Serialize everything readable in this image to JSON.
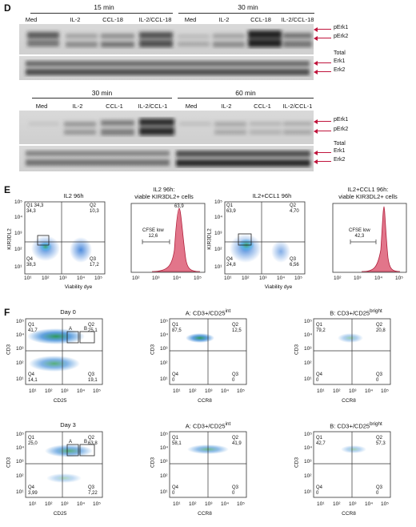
{
  "panel_d": {
    "letter": "D",
    "blot1": {
      "time_headers": [
        "15 min",
        "30 min"
      ],
      "lanes": [
        "Med",
        "IL-2",
        "CCL-18",
        "IL-2/CCL-18",
        "Med",
        "IL-2",
        "CCL-18",
        "IL-2/CCL-18"
      ],
      "labels": [
        "pErk1",
        "pErk2",
        "Total",
        "Erk1",
        "Erk2"
      ]
    },
    "blot2": {
      "time_headers": [
        "30 min",
        "60 min"
      ],
      "lanes": [
        "Med",
        "IL-2",
        "CCL-1",
        "IL-2/CCL-1",
        "Med",
        "IL-2",
        "CCL-1",
        "IL-2/CCL-1"
      ],
      "labels": [
        "pErk1",
        "pErk2",
        "Total",
        "Erk1",
        "Erk2"
      ]
    }
  },
  "panel_e": {
    "letter": "E",
    "plots": [
      {
        "title": "IL2 96h",
        "ylabel": "KIR3DL2",
        "xlabel": "Viability dye",
        "q1": "Q1 34,3",
        "q1v": "34,3",
        "q2": "Q2",
        "q2v": "10,3",
        "q3": "Q3",
        "q3v": "17,2",
        "q4": "Q4",
        "q4v": "38,3"
      },
      {
        "title": "IL2 96h:",
        "subtitle": "viable KIR3DL2+ cells",
        "peak": "63,9",
        "gate": "CFSE low",
        "gatev": "12,6"
      },
      {
        "title": "IL2+CCL1 96h",
        "ylabel": "KIR3DL2",
        "xlabel": "Viability dye",
        "q1": "Q1",
        "q1v": "63,9",
        "q2": "Q2",
        "q2v": "4,70",
        "q3": "Q3",
        "q3v": "6,56",
        "q4": "Q4",
        "q4v": "24,8"
      },
      {
        "title": "IL2+CCL1 96h:",
        "subtitle": "viable KIR3DL2+ cells",
        "gate": "CFSE low",
        "gatev": "42,3"
      }
    ],
    "ticks": [
      "10⁵",
      "10⁴",
      "10³",
      "10²",
      "10¹"
    ],
    "xticks": [
      "10¹",
      "10²",
      "10³",
      "10⁴",
      "10⁵"
    ],
    "xticks_hist": [
      "10²",
      "10³",
      "10⁴",
      "10⁵"
    ]
  },
  "panel_f": {
    "letter": "F",
    "gate_a": "A",
    "gate_b": "B",
    "rows": [
      {
        "plots": [
          {
            "title": "Day 0",
            "ylabel": "CD3",
            "xlabel": "CD25",
            "q1": "Q1",
            "q1v": "41,7",
            "q2": "Q2",
            "q2v": "25,1",
            "q3": "Q3",
            "q3v": "19,1",
            "q4": "Q4",
            "q4v": "14,1"
          },
          {
            "title": "A: CD3+/CD25",
            "sup": "int",
            "ylabel": "CD3",
            "xlabel": "CCR8",
            "q1": "Q1",
            "q1v": "87,5",
            "q2": "Q2",
            "q2v": "12,5",
            "q3": "Q3",
            "q3v": "0",
            "q4": "Q4",
            "q4v": "0"
          },
          {
            "title": "B: CD3+/CD25",
            "sup": "bright",
            "ylabel": "CD3",
            "xlabel": "CCR8",
            "q1": "Q1",
            "q1v": "79,2",
            "q2": "Q2",
            "q2v": "20,8",
            "q3": "Q3",
            "q3v": "0",
            "q4": "Q4",
            "q4v": "0"
          }
        ]
      },
      {
        "plots": [
          {
            "title": "Day 3",
            "ylabel": "CD3",
            "xlabel": "CD25",
            "q1": "Q1",
            "q1v": "25,0",
            "q2": "Q2",
            "q2v": "63,8",
            "q3": "Q3",
            "q3v": "7,22",
            "q4": "Q4",
            "q4v": "3,99"
          },
          {
            "title": "A: CD3+/CD25",
            "sup": "int",
            "ylabel": "CD3",
            "xlabel": "CCR8",
            "q1": "Q1",
            "q1v": "58,1",
            "q2": "Q2",
            "q2v": "41,9",
            "q3": "Q3",
            "q3v": "0",
            "q4": "Q4",
            "q4v": "0"
          },
          {
            "title": "B: CD3+/CD25",
            "sup": "bright",
            "ylabel": "CD3",
            "xlabel": "CCR8",
            "q1": "Q1",
            "q1v": "42,7",
            "q2": "Q2",
            "q2v": "57,3",
            "q3": "Q3",
            "q3v": "0",
            "q4": "Q4",
            "q4v": "0"
          }
        ]
      }
    ],
    "ticks": [
      "10⁵",
      "10⁴",
      "10³",
      "10²",
      "10¹"
    ],
    "xticks": [
      "10¹",
      "10²",
      "10³",
      "10⁴",
      "10⁵"
    ]
  }
}
